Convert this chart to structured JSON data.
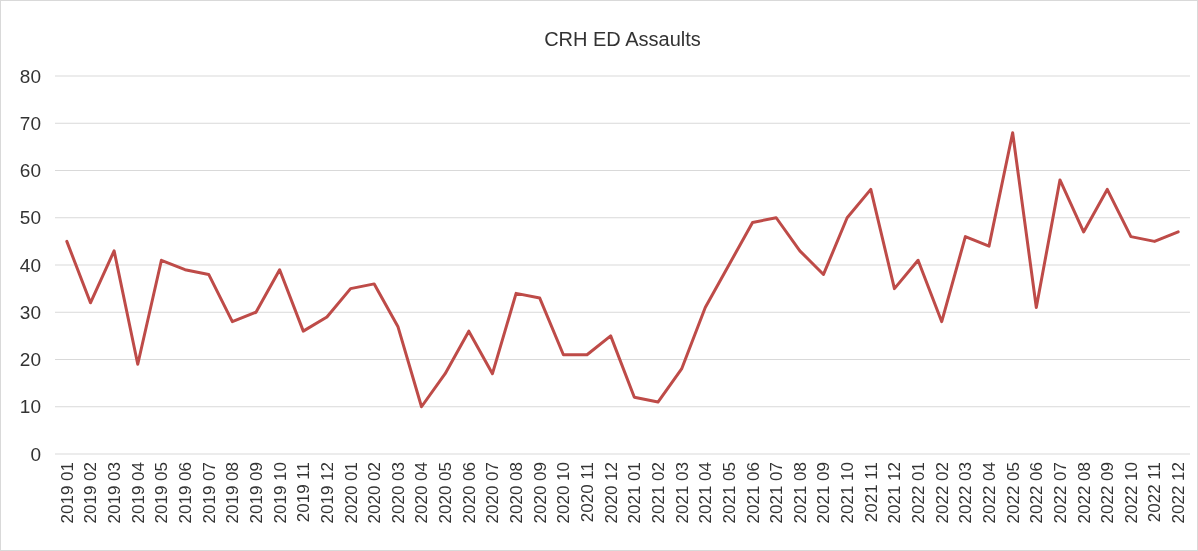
{
  "chart_data": {
    "type": "line",
    "title": "CRH ED Assaults",
    "categories": [
      "2019 01",
      "2019 02",
      "2019 03",
      "2019 04",
      "2019 05",
      "2019 06",
      "2019 07",
      "2019 08",
      "2019 09",
      "2019 10",
      "2019 11",
      "2019 12",
      "2020 01",
      "2020 02",
      "2020 03",
      "2020 04",
      "2020 05",
      "2020 06",
      "2020 07",
      "2020 08",
      "2020 09",
      "2020 10",
      "2020 11",
      "2020 12",
      "2021 01",
      "2021 02",
      "2021 03",
      "2021 04",
      "2021 05",
      "2021 06",
      "2021 07",
      "2021 08",
      "2021 09",
      "2021 10",
      "2021 11",
      "2021 12",
      "2022 01",
      "2022 02",
      "2022 03",
      "2022 04",
      "2022 05",
      "2022 06",
      "2022 07",
      "2022 08",
      "2022 09",
      "2022 10",
      "2022 11",
      "2022 12"
    ],
    "series": [
      {
        "color": "#be4b48",
        "values": [
          45,
          32,
          43,
          19,
          41,
          39,
          38,
          28,
          30,
          39,
          26,
          29,
          35,
          36,
          27,
          10,
          17,
          26,
          17,
          34,
          33,
          21,
          21,
          25,
          12,
          11,
          18,
          31,
          40,
          49,
          50,
          43,
          38,
          50,
          56,
          35,
          41,
          28,
          46,
          44,
          68,
          31,
          58,
          47,
          56,
          46,
          45,
          47
        ]
      }
    ],
    "ylim": [
      0,
      80
    ],
    "yticks": [
      0,
      10,
      20,
      30,
      40,
      50,
      60,
      70,
      80
    ],
    "grid": "y",
    "marker": "none",
    "line_style": "solid"
  }
}
